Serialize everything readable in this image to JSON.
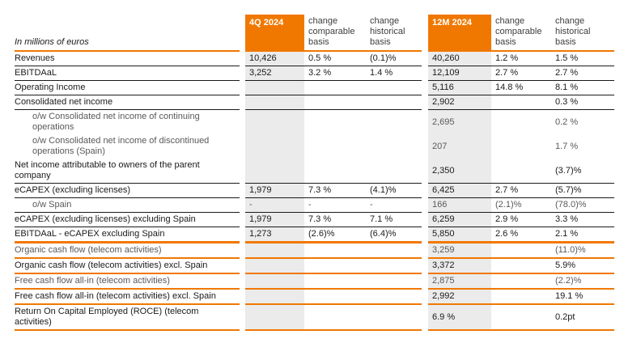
{
  "colors": {
    "accent_orange": "#f07800",
    "column_shade": "#ebebeb",
    "dark_rule": "#1a1a1a",
    "dim_text": "#595959"
  },
  "table": {
    "unit_label": "In millions of euros",
    "groups": [
      {
        "period": "4Q 2024",
        "change_comparable": "change\ncomparable\nbasis",
        "change_historical": "change\nhistorical\nbasis"
      },
      {
        "period": "12M 2024",
        "change_comparable": "change\ncomparable\nbasis",
        "change_historical": "change\nhistorical\nbasis"
      }
    ],
    "rows": [
      {
        "label": "Revenues",
        "indent": false,
        "dim": false,
        "border": "dark",
        "q": [
          "10,426",
          "0.5 %",
          "(0.1)%"
        ],
        "m": [
          "40,260",
          "1.2 %",
          "1.5 %"
        ]
      },
      {
        "label": "EBITDAaL",
        "indent": false,
        "dim": false,
        "border": "dark",
        "q": [
          "3,252",
          "3.2 %",
          "1.4 %"
        ],
        "m": [
          "12,109",
          "2.7 %",
          "2.7 %"
        ]
      },
      {
        "label": "Operating Income",
        "indent": false,
        "dim": false,
        "border": "dark",
        "q": [
          "",
          "",
          ""
        ],
        "m": [
          "5,116",
          "14.8 %",
          "8.1 %"
        ]
      },
      {
        "label": "Consolidated net income",
        "indent": false,
        "dim": false,
        "border": "dark",
        "q": [
          "",
          "",
          ""
        ],
        "m": [
          "2,902",
          "",
          "0.3 %"
        ]
      },
      {
        "label": "o/w Consolidated net income of continuing operations",
        "indent": true,
        "dim": true,
        "border": "none",
        "q": [
          "",
          "",
          ""
        ],
        "m": [
          "2,695",
          "",
          "0.2 %"
        ]
      },
      {
        "label": "o/w Consolidated net income of discontinued operations (Spain)",
        "indent": true,
        "dim": true,
        "border": "none",
        "q": [
          "",
          "",
          ""
        ],
        "m": [
          "207",
          "",
          "1.7 %"
        ]
      },
      {
        "label": "Net income attributable to owners of the parent company",
        "indent": false,
        "dim": false,
        "border": "dark",
        "q": [
          "",
          "",
          ""
        ],
        "m": [
          "2,350",
          "",
          "(3.7)%"
        ]
      },
      {
        "label": "eCAPEX (excluding licenses)",
        "indent": false,
        "dim": false,
        "border": "dark",
        "q": [
          "1,979",
          "7.3 %",
          "(4.1)%"
        ],
        "m": [
          "6,425",
          "2.7 %",
          "(5.7)%"
        ]
      },
      {
        "label": "o/w Spain",
        "indent": true,
        "dim": true,
        "border": "dark",
        "q": [
          "-",
          "-",
          "-"
        ],
        "m": [
          "166",
          "(2.1)%",
          "(78.0)%"
        ]
      },
      {
        "label": "eCAPEX (excluding licenses) excluding Spain",
        "indent": false,
        "dim": false,
        "border": "dark",
        "q": [
          "1,979",
          "7.3 %",
          "7.1 %"
        ],
        "m": [
          "6,259",
          "2.9 %",
          "3.3 %"
        ]
      },
      {
        "label": "EBITDAaL - eCAPEX excluding Spain",
        "indent": false,
        "dim": false,
        "border": "orange-thick",
        "q": [
          "1,273",
          "(2.6)%",
          "(6.4)%"
        ],
        "m": [
          "5,850",
          "2.6 %",
          "2.1 %"
        ]
      },
      {
        "label": "Organic cash flow (telecom activities)",
        "indent": false,
        "dim": true,
        "border": "orange",
        "q": [
          "",
          "",
          ""
        ],
        "m": [
          "3,259",
          "",
          "(11.0)%"
        ]
      },
      {
        "label": "Organic cash flow (telecom activities) excl. Spain",
        "indent": false,
        "dim": false,
        "border": "orange",
        "q": [
          "",
          "",
          ""
        ],
        "m": [
          "3,372",
          "",
          "5.9%"
        ]
      },
      {
        "label": "Free cash flow all-in (telecom activities)",
        "indent": false,
        "dim": true,
        "border": "orange",
        "q": [
          "",
          "",
          ""
        ],
        "m": [
          "2,875",
          "",
          "(2.2)%"
        ]
      },
      {
        "label": "Free cash flow all-in (telecom activities) excl. Spain",
        "indent": false,
        "dim": false,
        "border": "orange",
        "q": [
          "",
          "",
          ""
        ],
        "m": [
          "2,992",
          "",
          "19.1 %"
        ]
      },
      {
        "label": "Return On Capital Employed (ROCE) (telecom activities)",
        "indent": false,
        "dim": false,
        "border": "orange",
        "q": [
          "",
          "",
          ""
        ],
        "m": [
          "6.9 %",
          "",
          "0.2pt"
        ]
      }
    ]
  }
}
